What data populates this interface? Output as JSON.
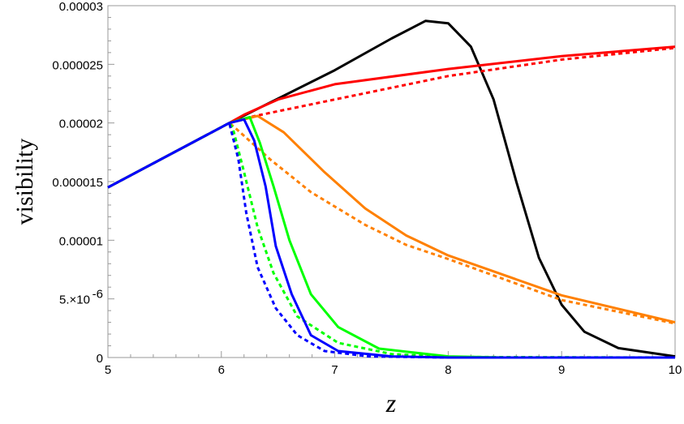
{
  "chart_data": {
    "type": "line",
    "xlabel": "z",
    "ylabel": "visibility",
    "xlim": [
      5,
      10
    ],
    "ylim": [
      0,
      3e-05
    ],
    "grid": false,
    "x_ticks": [
      "5",
      "6",
      "7",
      "8",
      "9",
      "10"
    ],
    "y_ticks": [
      {
        "value": 0,
        "label": "0"
      },
      {
        "value": 5e-06,
        "label": "5.×10",
        "exp": "-6"
      },
      {
        "value": 1e-05,
        "label": "0.00001"
      },
      {
        "value": 1.5e-05,
        "label": "0.000015"
      },
      {
        "value": 2e-05,
        "label": "0.00002"
      },
      {
        "value": 2.5e-05,
        "label": "0.000025"
      },
      {
        "value": 3e-05,
        "label": "0.00003"
      }
    ],
    "series": [
      {
        "color": "#000000",
        "style": "solid",
        "x": [
          5,
          6.07,
          7,
          7.5,
          7.8,
          8.0,
          8.2,
          8.4,
          8.6,
          8.8,
          9.0,
          9.2,
          9.5,
          10
        ],
        "y": [
          1.45e-05,
          2e-05,
          2.45e-05,
          2.72e-05,
          2.87e-05,
          2.85e-05,
          2.65e-05,
          2.2e-05,
          1.5e-05,
          8.5e-06,
          4.5e-06,
          2.2e-06,
          8e-07,
          1e-07
        ]
      },
      {
        "color": "#ff0000",
        "style": "solid",
        "x": [
          5,
          6.07,
          6.2,
          6.5,
          7,
          8,
          9,
          10
        ],
        "y": [
          1.45e-05,
          2e-05,
          2.07e-05,
          2.2e-05,
          2.33e-05,
          2.46e-05,
          2.57e-05,
          2.65e-05
        ]
      },
      {
        "color": "#ff0000",
        "style": "dotted",
        "x": [
          5,
          6.07,
          6.3,
          7,
          8,
          9,
          10
        ],
        "y": [
          1.45e-05,
          2e-05,
          2.06e-05,
          2.2e-05,
          2.4e-05,
          2.54e-05,
          2.64e-05
        ]
      },
      {
        "color": "#ff8000",
        "style": "solid",
        "x": [
          5,
          6.07,
          6.32,
          6.55,
          6.91,
          7.27,
          7.63,
          8,
          9,
          10
        ],
        "y": [
          1.45e-05,
          2e-05,
          2.06e-05,
          1.92e-05,
          1.58e-05,
          1.27e-05,
          1.04e-05,
          8.7e-06,
          5.3e-06,
          3e-06
        ]
      },
      {
        "color": "#ff8000",
        "style": "dotted",
        "x": [
          5,
          6.07,
          6.12,
          6.43,
          6.79,
          7.27,
          7.63,
          8,
          9,
          10
        ],
        "y": [
          1.45e-05,
          2e-05,
          1.96e-05,
          1.69e-05,
          1.41e-05,
          1.13e-05,
          9.6e-06,
          8.4e-06,
          4.9e-06,
          2.9e-06
        ]
      },
      {
        "color": "#00ff00",
        "style": "solid",
        "x": [
          5,
          6.07,
          6.25,
          6.34,
          6.46,
          6.6,
          6.79,
          7.03,
          7.39,
          8,
          8.5,
          10
        ],
        "y": [
          1.45e-05,
          2e-05,
          2.05e-05,
          1.83e-05,
          1.46e-05,
          1e-05,
          5.4e-06,
          2.6e-06,
          7.6e-07,
          1e-07,
          0,
          0
        ]
      },
      {
        "color": "#00ff00",
        "style": "dotted",
        "x": [
          5,
          6.07,
          6.1,
          6.2,
          6.32,
          6.46,
          6.67,
          7.03,
          7.5,
          8,
          10
        ],
        "y": [
          1.45e-05,
          2e-05,
          1.96e-05,
          1.58e-05,
          1.11e-05,
          7.2e-06,
          3.5e-06,
          1.25e-06,
          3e-07,
          5e-08,
          0
        ]
      },
      {
        "color": "#0000ff",
        "style": "solid",
        "x": [
          5,
          6.07,
          6.2,
          6.29,
          6.39,
          6.48,
          6.62,
          6.79,
          7.03,
          7.5,
          8,
          10
        ],
        "y": [
          1.45e-05,
          2e-05,
          2.03e-05,
          1.85e-05,
          1.46e-05,
          9.5e-06,
          5.4e-06,
          1.9e-06,
          5.5e-07,
          1e-07,
          0,
          0
        ]
      },
      {
        "color": "#0000ff",
        "style": "dotted",
        "x": [
          5,
          6.07,
          6.15,
          6.22,
          6.32,
          6.48,
          6.67,
          6.91,
          7.3,
          8,
          10
        ],
        "y": [
          1.45e-05,
          2e-05,
          1.69e-05,
          1.23e-05,
          7.7e-06,
          4.2e-06,
          1.9e-06,
          5.5e-07,
          1e-07,
          0,
          0
        ]
      }
    ]
  }
}
